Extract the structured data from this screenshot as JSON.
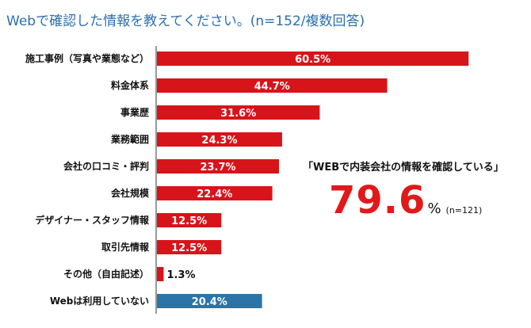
{
  "title": "Webで確認した情報を教えてください。(n=152/複数回答)",
  "chart_data": {
    "type": "bar",
    "orientation": "horizontal",
    "title": "Webで確認した情報を教えてください。(n=152/複数回答)",
    "categories": [
      "施工事例（写真や業態など）",
      "料金体系",
      "事業歴",
      "業務範囲",
      "会社の口コミ・評判",
      "会社規模",
      "デザイナー・スタッフ情報",
      "取引先情報",
      "その他（自由記述）",
      "Webは利用していない"
    ],
    "values": [
      60.5,
      44.7,
      31.6,
      24.3,
      23.7,
      22.4,
      12.5,
      12.5,
      1.3,
      20.4
    ],
    "value_labels": [
      "60.5%",
      "44.7%",
      "31.6%",
      "24.3%",
      "23.7%",
      "22.4%",
      "12.5%",
      "12.5%",
      "1.3%",
      "20.4%"
    ],
    "unit": "%",
    "xlim": [
      0,
      65
    ],
    "grid": false,
    "colors": {
      "default": "#d7141a",
      "highlight_last": "#2a74a8"
    },
    "bar_colors": [
      "#d7141a",
      "#d7141a",
      "#d7141a",
      "#d7141a",
      "#d7141a",
      "#d7141a",
      "#d7141a",
      "#d7141a",
      "#d7141a",
      "#2a74a8"
    ]
  },
  "callout": {
    "title": "「WEBで内装会社の情報を確認している」",
    "value": "79.6",
    "unit": "%",
    "note": "(n=121)",
    "color": "#e01a1a"
  }
}
